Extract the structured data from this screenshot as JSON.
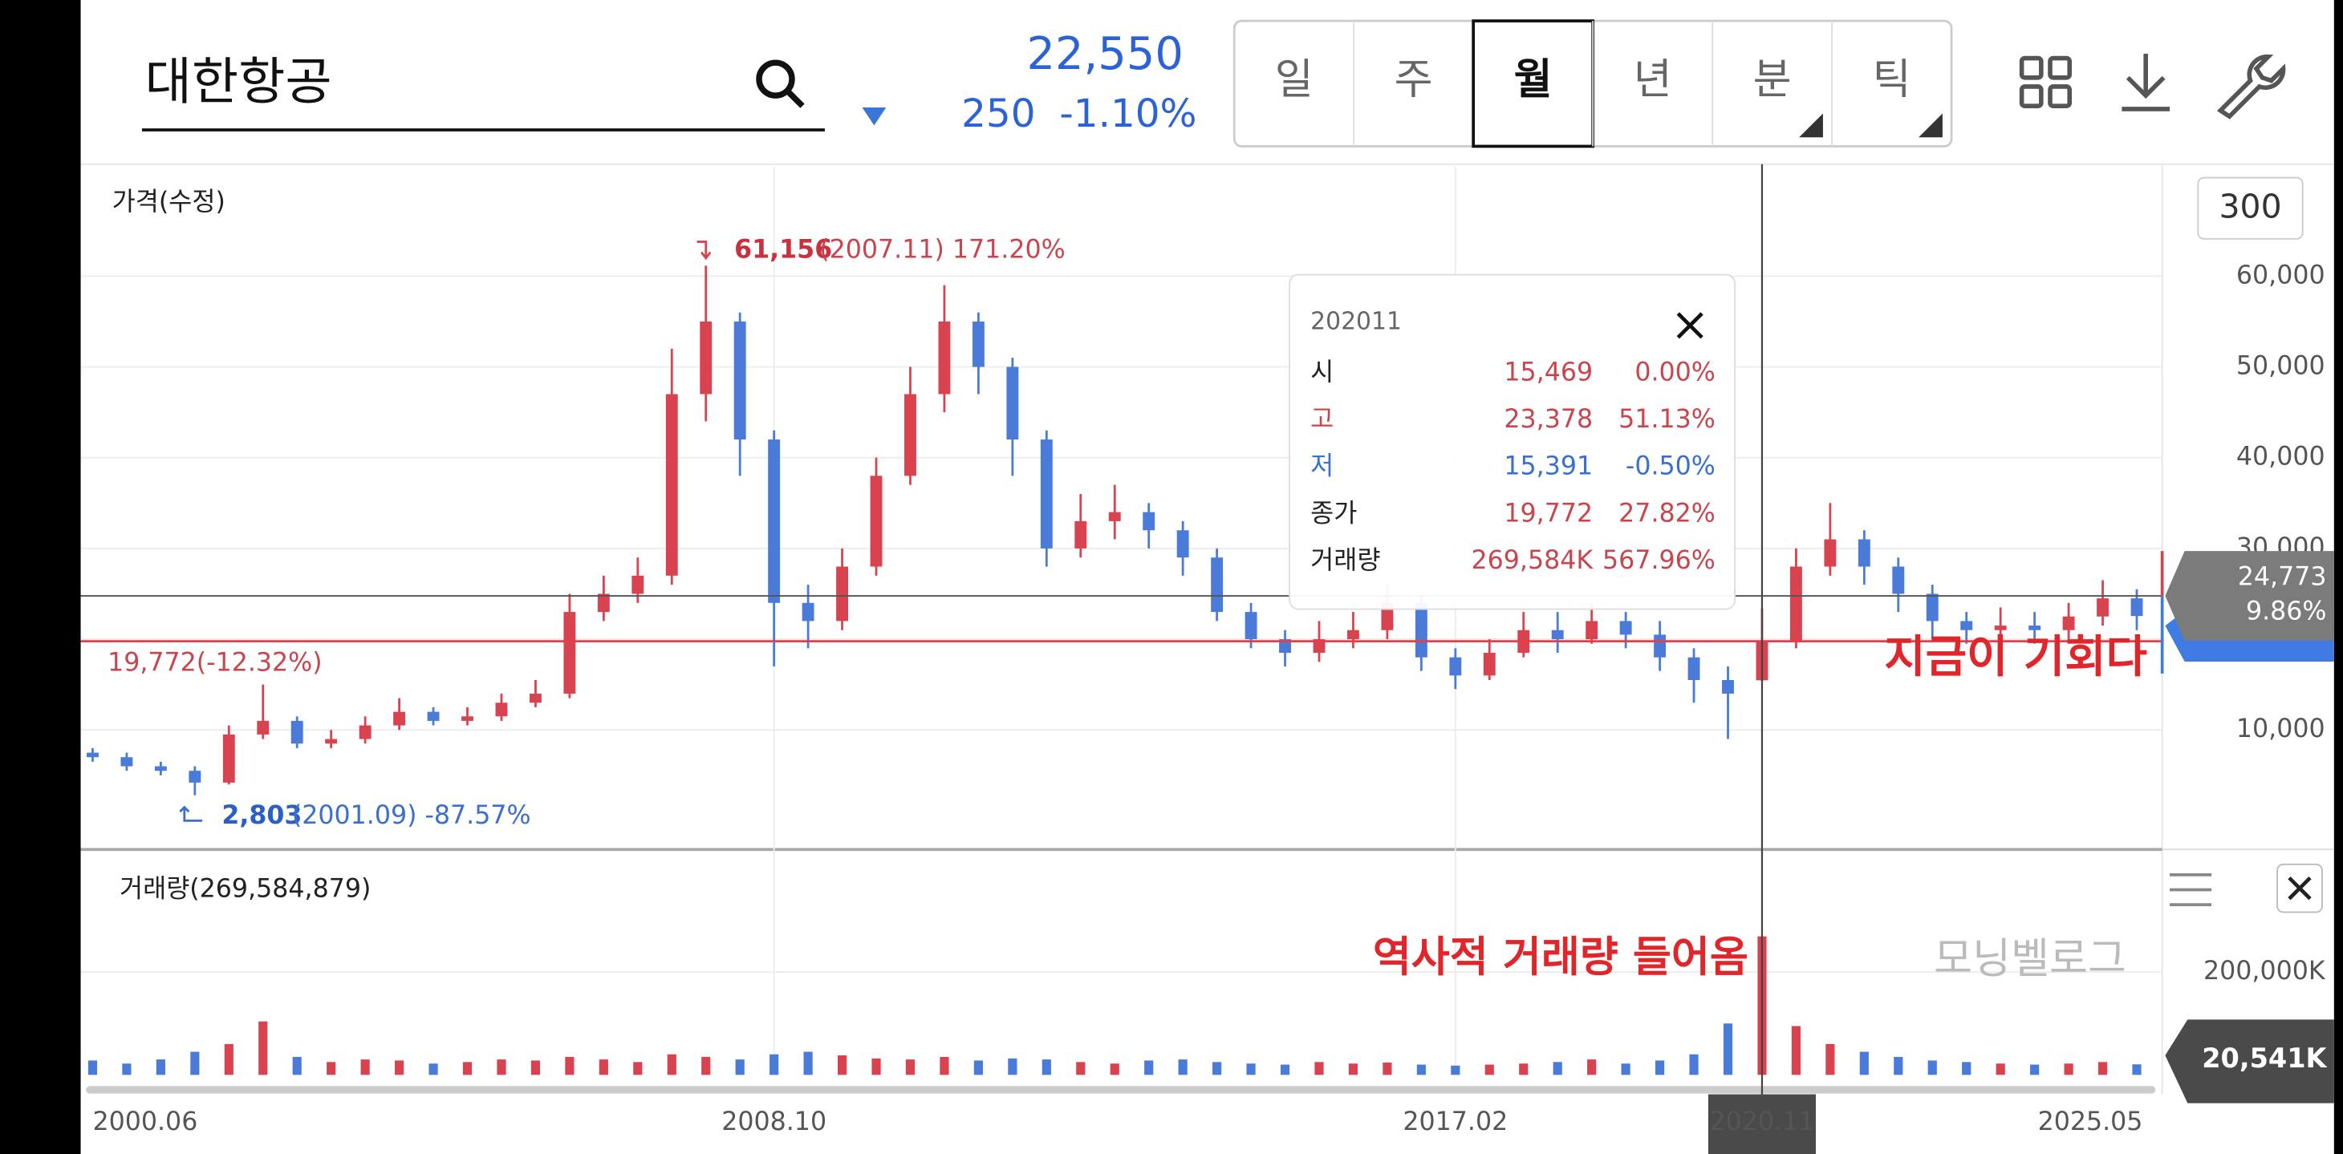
{
  "header": {
    "stock_name": "대한항공",
    "price": "22,550",
    "change": "250",
    "change_pct": "-1.10%"
  },
  "tabs": [
    "일",
    "주",
    "월",
    "년",
    "분",
    "틱"
  ],
  "selected_tab": 2,
  "chart_data": {
    "type": "candlestick",
    "price_label": "가격(수정)",
    "period_box": "300",
    "categories": [
      "2000.06",
      null,
      null,
      null,
      null,
      null,
      null,
      null,
      null,
      null,
      null,
      null,
      null,
      null,
      null,
      null,
      null,
      null,
      null,
      null,
      "2008.10",
      null,
      null,
      null,
      null,
      null,
      null,
      null,
      null,
      null,
      null,
      null,
      null,
      null,
      null,
      null,
      null,
      null,
      null,
      null,
      "2017.02",
      null,
      null,
      null,
      null,
      null,
      null,
      null,
      null,
      "2020.11",
      null,
      null,
      null,
      null,
      null,
      null,
      null,
      null,
      null,
      null,
      "2025.05"
    ],
    "open": [
      7500,
      7000,
      6000,
      5500,
      4200,
      9500,
      11000,
      8500,
      9000,
      10500,
      12000,
      11000,
      11500,
      13000,
      14000,
      23000,
      25000,
      27000,
      47000,
      55000,
      42000,
      24000,
      22000,
      28000,
      38000,
      47000,
      55000,
      50000,
      42000,
      30000,
      33000,
      34000,
      32000,
      29000,
      23000,
      20000,
      18500,
      20000,
      21000,
      24000,
      18000,
      16000,
      18500,
      21000,
      20000,
      22000,
      20500,
      18000,
      15500,
      15469,
      19772,
      28000,
      31000,
      28000,
      25000,
      22000,
      21000,
      21500,
      21000,
      22500,
      24500
    ],
    "high": [
      8000,
      7500,
      6500,
      6000,
      10500,
      15000,
      11500,
      10000,
      11500,
      13500,
      12500,
      12500,
      14000,
      15500,
      25000,
      27000,
      29000,
      52000,
      61156,
      56000,
      43000,
      26000,
      30000,
      40000,
      50000,
      59000,
      56000,
      51000,
      43000,
      36000,
      37000,
      35000,
      33000,
      30000,
      24000,
      21000,
      22000,
      23000,
      26000,
      25000,
      19000,
      20000,
      23000,
      23000,
      24000,
      23000,
      22000,
      19000,
      17000,
      23378,
      30000,
      35000,
      32000,
      29000,
      26000,
      23000,
      23500,
      23000,
      24000,
      26500,
      25500
    ],
    "low": [
      6500,
      5500,
      5000,
      2803,
      4000,
      9000,
      8000,
      8000,
      8500,
      10000,
      10500,
      10500,
      11000,
      12500,
      13500,
      22000,
      24000,
      26000,
      44000,
      38000,
      17000,
      19000,
      21000,
      27000,
      37000,
      45000,
      47000,
      38000,
      28000,
      29000,
      31000,
      30000,
      27000,
      22000,
      19000,
      17000,
      17500,
      19000,
      20000,
      16500,
      14500,
      15500,
      18000,
      18500,
      19500,
      19000,
      16500,
      13000,
      9000,
      15391,
      19000,
      27000,
      26000,
      23000,
      20000,
      19500,
      19500,
      19500,
      20000,
      21500,
      21000
    ],
    "close": [
      7000,
      6000,
      5500,
      4200,
      9500,
      11000,
      8500,
      9000,
      10500,
      12000,
      11000,
      11500,
      13000,
      14000,
      23000,
      25000,
      27000,
      47000,
      55000,
      42000,
      24000,
      22000,
      28000,
      38000,
      47000,
      55000,
      50000,
      42000,
      30000,
      33000,
      34000,
      32000,
      29000,
      23000,
      20000,
      18500,
      20000,
      21000,
      24000,
      18000,
      16000,
      18500,
      21000,
      20000,
      22000,
      20500,
      18000,
      15500,
      14000,
      19772,
      28000,
      31000,
      28000,
      25000,
      22000,
      21000,
      21500,
      21000,
      22500,
      24500,
      22550
    ],
    "up_color": "#d9434f",
    "down_color": "#4a7bd8",
    "ylim": [
      -3000,
      72000
    ],
    "yticks": [
      {
        "value": 10000,
        "label": "10,000"
      },
      {
        "value": 20000,
        "label": "20,000"
      },
      {
        "value": 30000,
        "label": "30,000"
      },
      {
        "value": 40000,
        "label": "40,000"
      },
      {
        "value": 50000,
        "label": "50,000"
      },
      {
        "value": 60000,
        "label": "60,000"
      }
    ],
    "grid": true,
    "max_annotation": {
      "value": "61,156",
      "detail": "(2007.11) 171.20%"
    },
    "min_annotation": {
      "value": "2,803",
      "detail": "(2001.09) -87.57%"
    },
    "reference_label": "19,772(-12.32%)",
    "current_marker": {
      "value": 24773,
      "label": "24,773",
      "pct": "9.86%"
    },
    "note": "지금이 기회다",
    "tooltip": {
      "date": "202011",
      "rows": [
        {
          "label": "시",
          "value": "15,469",
          "pct": "0.00%"
        },
        {
          "label": "고",
          "value": "23,378",
          "pct": "51.13%"
        },
        {
          "label": "저",
          "value": "15,391",
          "pct": "-0.50%"
        },
        {
          "label": "종가",
          "value": "19,772",
          "pct": "27.82%"
        },
        {
          "label": "거래량",
          "value": "269,584K",
          "pct": "567.96%"
        }
      ]
    },
    "volume": {
      "label": "거래량(269,584,879)",
      "values": [
        28000,
        22000,
        30000,
        45000,
        60000,
        104000,
        35000,
        25000,
        30000,
        28000,
        22000,
        25000,
        30000,
        28000,
        35000,
        30000,
        25000,
        40000,
        35000,
        30000,
        40000,
        45000,
        38000,
        32000,
        30000,
        35000,
        28000,
        32000,
        30000,
        25000,
        22000,
        28000,
        30000,
        25000,
        22000,
        20000,
        25000,
        22000,
        24000,
        20000,
        18000,
        20000,
        22000,
        25000,
        30000,
        22000,
        28000,
        40000,
        100000,
        269584,
        95000,
        60000,
        45000,
        35000,
        28000,
        25000,
        22000,
        20000,
        22000,
        25000,
        20541
      ],
      "ylim": [
        0,
        430000
      ],
      "yticks": [
        {
          "value": 200000,
          "label": "200,000K"
        }
      ],
      "last_marker": {
        "value": 20541,
        "label": "20,541K"
      },
      "note": "역사적 거래량 들어옴",
      "watermark": "모닝벨로그"
    }
  }
}
